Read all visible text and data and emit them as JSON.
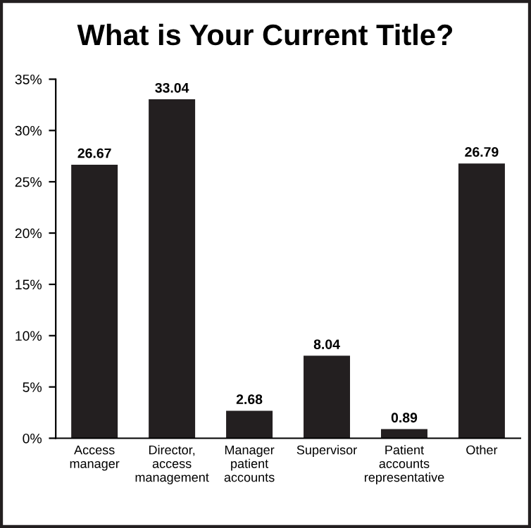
{
  "chart_data": {
    "type": "bar",
    "title": "What is Your Current Title?",
    "categories": [
      "Access\nmanager",
      "Director,\naccess\nmanagement",
      "Manager\npatient\naccounts",
      "Supervisor",
      "Patient\naccounts\nrepresentative",
      "Other"
    ],
    "values": [
      26.67,
      33.04,
      2.68,
      8.04,
      0.89,
      26.79
    ],
    "color": "#231f20",
    "ylim": [
      0,
      35
    ],
    "yticks": [
      {
        "value": 0,
        "label": "0%"
      },
      {
        "value": 5,
        "label": "5%"
      },
      {
        "value": 10,
        "label": "10%"
      },
      {
        "value": 15,
        "label": "15%"
      },
      {
        "value": 20,
        "label": "20%"
      },
      {
        "value": 25,
        "label": "25%"
      },
      {
        "value": 30,
        "label": "30%"
      },
      {
        "value": 35,
        "label": "35%"
      }
    ],
    "data_labels": true,
    "grid": false,
    "legend": false
  }
}
